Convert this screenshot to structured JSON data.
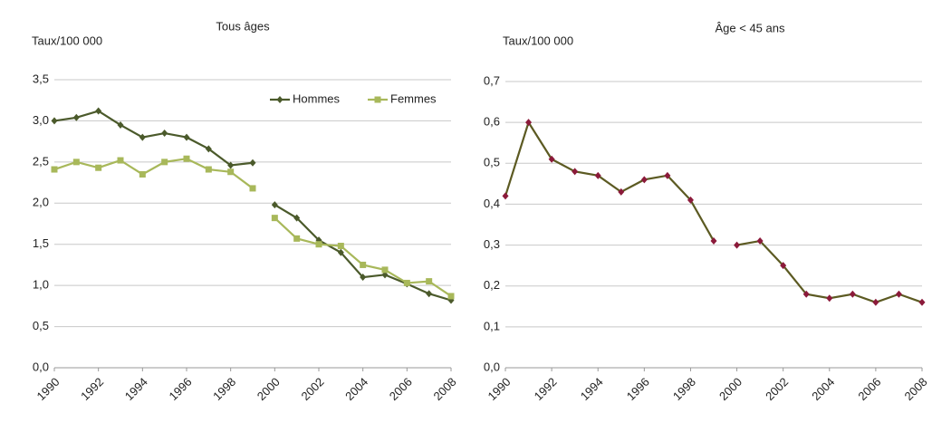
{
  "chart_data": [
    {
      "type": "line",
      "title": "Tous âges",
      "ylabel": "Taux/100 000",
      "x": [
        1990,
        1991,
        1992,
        1993,
        1994,
        1995,
        1996,
        1997,
        1998,
        1999,
        null,
        2000,
        2001,
        2002,
        2003,
        2004,
        2005,
        2006,
        2007,
        2008
      ],
      "series": [
        {
          "name": "Hommes",
          "color": "#4b5a2b",
          "values": [
            3.0,
            3.04,
            3.12,
            2.95,
            2.8,
            2.85,
            2.8,
            2.66,
            2.46,
            2.49,
            null,
            1.98,
            1.82,
            1.55,
            1.4,
            1.1,
            1.13,
            1.02,
            0.9,
            0.82
          ]
        },
        {
          "name": "Femmes",
          "color": "#a8b85a",
          "values": [
            2.41,
            2.5,
            2.43,
            2.52,
            2.35,
            2.5,
            2.54,
            2.41,
            2.38,
            2.18,
            null,
            1.82,
            1.57,
            1.5,
            1.48,
            1.25,
            1.19,
            1.03,
            1.05,
            0.87
          ]
        }
      ],
      "xlim": [
        1990,
        2008
      ],
      "xticks": [
        1990,
        1992,
        1994,
        1996,
        1998,
        2000,
        2002,
        2004,
        2006,
        2008
      ],
      "ylim": [
        0,
        3.5
      ],
      "yticks": [
        {
          "value": 0,
          "label": "0,0"
        },
        {
          "value": 0.5,
          "label": "0,5"
        },
        {
          "value": 1,
          "label": "1,0"
        },
        {
          "value": 1.5,
          "label": "1,5"
        },
        {
          "value": 2,
          "label": "2,0"
        },
        {
          "value": 2.5,
          "label": "2,5"
        },
        {
          "value": 3,
          "label": "3,0"
        },
        {
          "value": 3.5,
          "label": "3,5"
        }
      ],
      "grid": true,
      "legend": "upper right"
    },
    {
      "type": "line",
      "title": "Âge < 45 ans",
      "ylabel": "Taux/100 000",
      "x": [
        1990,
        1991,
        1992,
        1993,
        1994,
        1995,
        1996,
        1997,
        1998,
        1999,
        null,
        2000,
        2001,
        2002,
        2003,
        2004,
        2005,
        2006,
        2007,
        2008
      ],
      "series": [
        {
          "color": "#5c5a22",
          "marker_color": "#8b1a3a",
          "values": [
            0.42,
            0.6,
            0.51,
            0.48,
            0.47,
            0.43,
            0.46,
            0.47,
            0.41,
            0.31,
            null,
            0.3,
            0.31,
            0.25,
            0.18,
            0.17,
            0.18,
            0.16,
            0.18,
            0.16
          ]
        }
      ],
      "xlim": [
        1990,
        2008
      ],
      "xticks": [
        1990,
        1992,
        1994,
        1996,
        1998,
        2000,
        2002,
        2004,
        2006,
        2008
      ],
      "ylim": [
        0,
        0.7
      ],
      "yticks": [
        {
          "value": 0,
          "label": "0,0"
        },
        {
          "value": 0.1,
          "label": "0,1"
        },
        {
          "value": 0.2,
          "label": "0,2"
        },
        {
          "value": 0.3,
          "label": "0,3"
        },
        {
          "value": 0.4,
          "label": "0,4"
        },
        {
          "value": 0.5,
          "label": "0,5"
        },
        {
          "value": 0.6,
          "label": "0,6"
        },
        {
          "value": 0.7,
          "label": "0,7"
        }
      ],
      "grid": true
    }
  ]
}
